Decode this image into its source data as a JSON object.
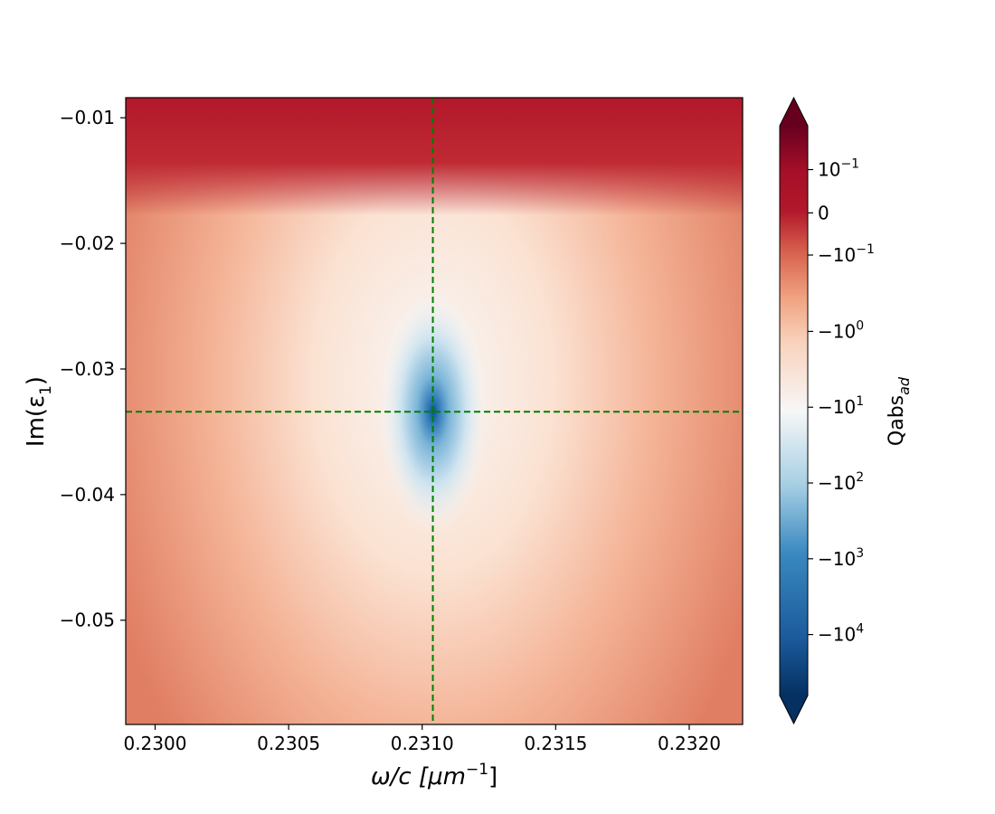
{
  "chart_data": {
    "type": "heatmap",
    "title": "",
    "xlabel": {
      "base": "ω/c [",
      "unit": "μm",
      "sup": "−1",
      "close": "]"
    },
    "ylabel": {
      "base": "Im(ε",
      "sub": "1",
      "close": ")"
    },
    "xlim": [
      0.22989,
      0.2322
    ],
    "ylim": [
      -0.0583,
      -0.0084
    ],
    "x_ticks": [
      {
        "value": 0.23,
        "label": "0.2300"
      },
      {
        "value": 0.2305,
        "label": "0.2305"
      },
      {
        "value": 0.231,
        "label": "0.2310"
      },
      {
        "value": 0.2315,
        "label": "0.2315"
      },
      {
        "value": 0.232,
        "label": "0.2320"
      }
    ],
    "y_ticks": [
      {
        "value": -0.01,
        "label": "−0.01"
      },
      {
        "value": -0.02,
        "label": "−0.02"
      },
      {
        "value": -0.03,
        "label": "−0.03"
      },
      {
        "value": -0.04,
        "label": "−0.04"
      },
      {
        "value": -0.05,
        "label": "−0.05"
      }
    ],
    "crosshair": {
      "x": 0.23104,
      "y": -0.0334,
      "color": "#008000",
      "style": "dashed"
    },
    "colormap": "RdBu_r",
    "colorbar": {
      "label": {
        "base": "Qabs",
        "sub": "ad"
      },
      "ticks": [
        {
          "base": "10",
          "exp": "−1",
          "pos": 0.923
        },
        {
          "base": "0",
          "exp": "",
          "pos": 0.847
        },
        {
          "base": "−10",
          "exp": "−1",
          "pos": 0.773
        },
        {
          "base": "−10",
          "exp": "0",
          "pos": 0.639
        },
        {
          "base": "−10",
          "exp": "1",
          "pos": 0.506
        },
        {
          "base": "−10",
          "exp": "2",
          "pos": 0.373
        },
        {
          "base": "−10",
          "exp": "3",
          "pos": 0.24
        },
        {
          "base": "−10",
          "exp": "4",
          "pos": 0.107
        }
      ],
      "extend": "both"
    }
  }
}
